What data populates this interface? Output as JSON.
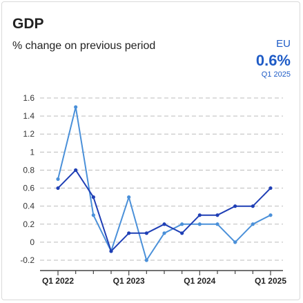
{
  "header": {
    "title": "GDP",
    "subtitle": "% change on previous period",
    "region": "EU",
    "headline_value": "0.6%",
    "headline_period": "Q1 2025"
  },
  "colors": {
    "dark_series": "#1f3fb5",
    "light_series": "#4a90d9",
    "accent_text": "#1e5bc6",
    "gridline": "#bbbbbb"
  },
  "chart_data": {
    "type": "line",
    "x": [
      "Q1 2022",
      "Q2 2022",
      "Q3 2022",
      "Q4 2022",
      "Q1 2023",
      "Q2 2023",
      "Q3 2023",
      "Q4 2023",
      "Q1 2024",
      "Q2 2024",
      "Q3 2024",
      "Q4 2024",
      "Q1 2025"
    ],
    "x_tick_labels": [
      "Q1 2022",
      "Q1 2023",
      "Q1 2024",
      "Q1 2025"
    ],
    "series": [
      {
        "values": [
          0.6,
          0.8,
          0.5,
          -0.1,
          0.1,
          0.1,
          0.2,
          0.1,
          0.3,
          0.3,
          0.4,
          0.4,
          0.6
        ]
      },
      {
        "values": [
          0.7,
          1.5,
          0.3,
          -0.1,
          0.5,
          -0.2,
          0.1,
          0.2,
          0.2,
          0.2,
          0.0,
          0.2,
          0.3
        ]
      }
    ],
    "y_ticks": [
      1.6,
      1.4,
      1.2,
      1,
      0.8,
      0.6,
      0.4,
      0.2,
      0,
      -0.2
    ],
    "ylim": [
      -0.2,
      1.6
    ],
    "grid": true,
    "title": "GDP",
    "xlabel": "",
    "ylabel": ""
  }
}
